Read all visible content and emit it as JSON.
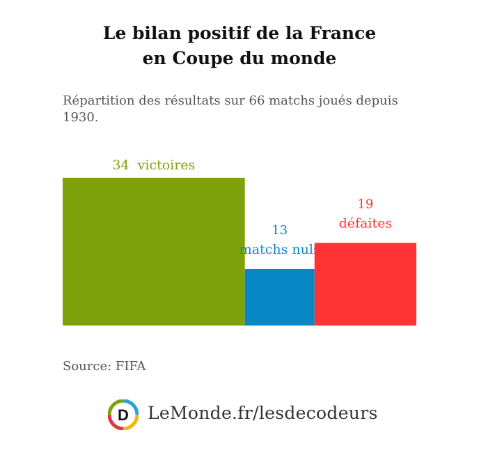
{
  "title_line1": "Le bilan positif de la France",
  "title_line2": "en Coupe du monde",
  "subtitle": "Répartition des résultats sur 66 matchs joués depuis 1930.",
  "source": "Source: FIFA",
  "logo_letter": "D",
  "logo_text": "LeMonde.fr/lesdecodeurs",
  "chart_data": {
    "type": "bar",
    "layout": "proportional-width",
    "total": 66,
    "categories": [
      "victoires",
      "matchs nuls",
      "défaites"
    ],
    "values": [
      34,
      13,
      19
    ],
    "colors": [
      "#7fa20a",
      "#0887c5",
      "#ff3333"
    ],
    "labels": [
      {
        "value": "34",
        "text": "victoires"
      },
      {
        "value": "13",
        "text": "matchs nuls"
      },
      {
        "value": "19",
        "text": "défaites"
      }
    ],
    "title": "",
    "xlabel": "",
    "ylabel": "",
    "grid": false,
    "legend": "none"
  },
  "colors": {
    "logo_ring": [
      "#2aa3d8",
      "#f2b600",
      "#e2334a",
      "#7fa20a"
    ]
  }
}
